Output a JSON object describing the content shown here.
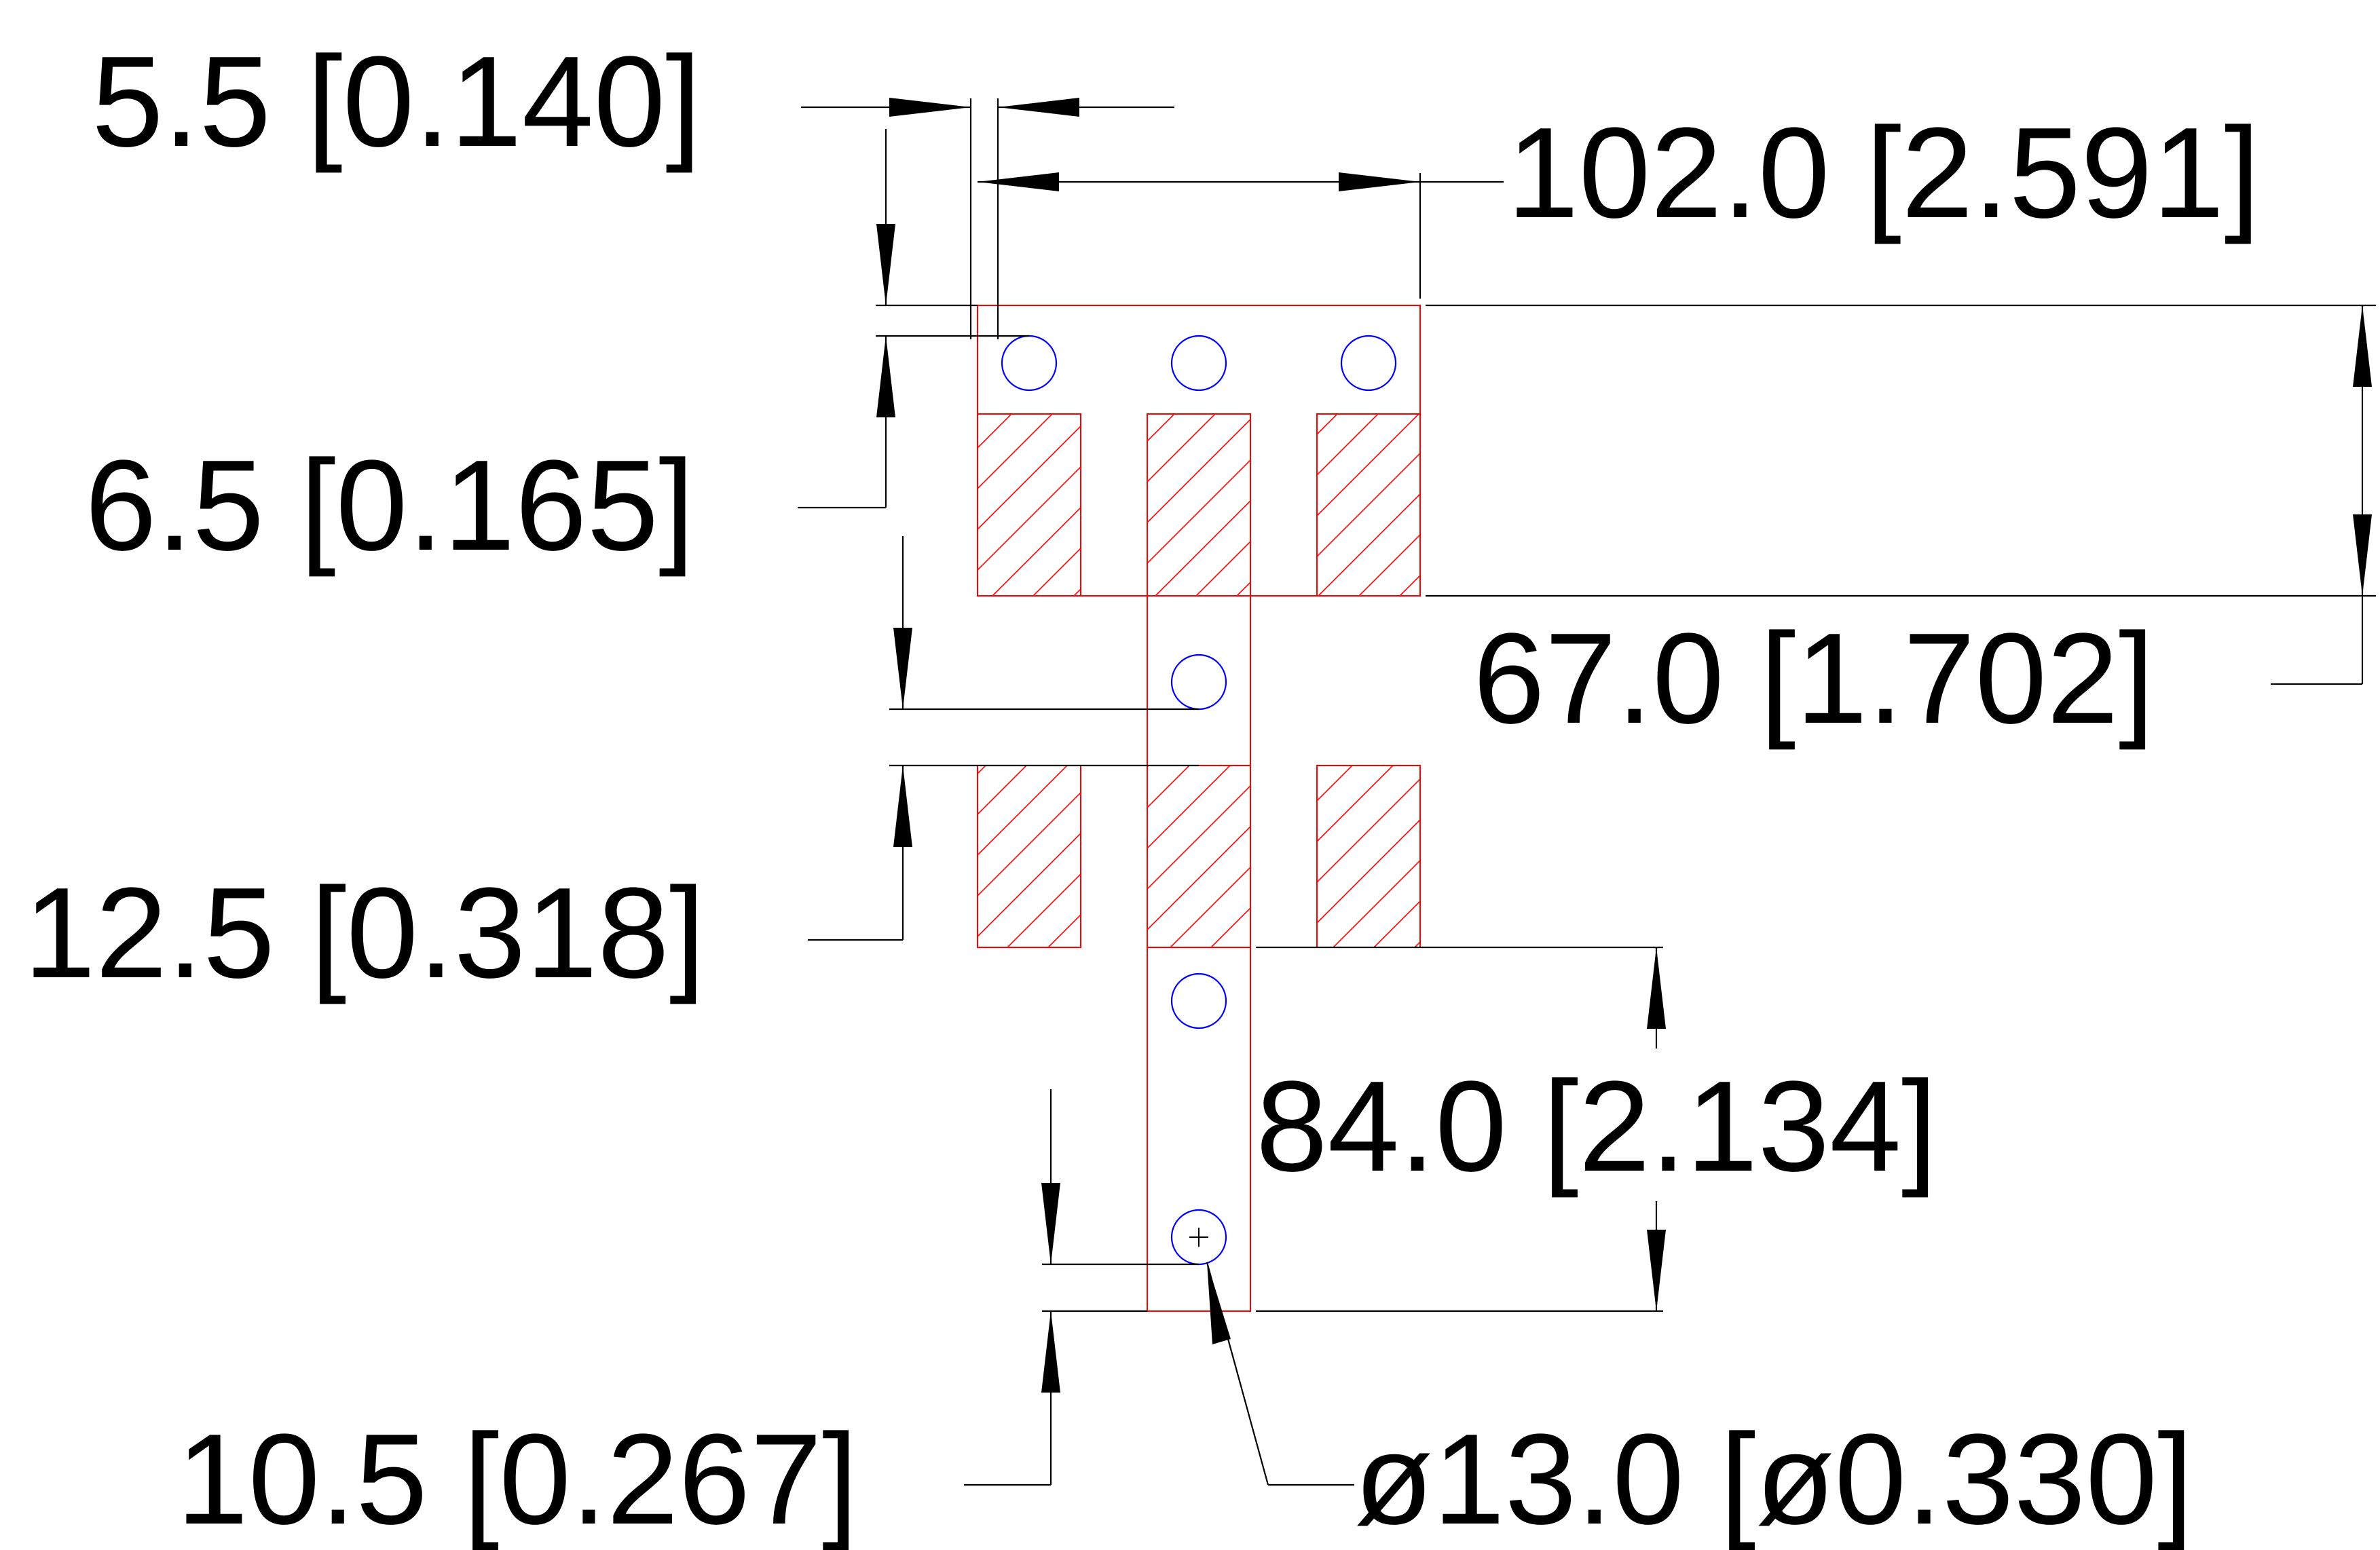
{
  "colors": {
    "outline": "#ff0000",
    "holes": "#0000ff",
    "dimensions": "#000000",
    "background": "#ffffff"
  },
  "dimensions": {
    "hole_offset_x": "5.5 [0.140]",
    "overall_width": "102.0 [2.591]",
    "hole_offset_y": "6.5 [0.165]",
    "top_section_height": "67.0 [1.702]",
    "pin_pitch": "12.5 [0.318]",
    "stem_height": "84.0 [2.134]",
    "bottom_hole_offset": "10.5 [0.267]",
    "hole_diameter": "ø13.0 [ø0.330]"
  }
}
